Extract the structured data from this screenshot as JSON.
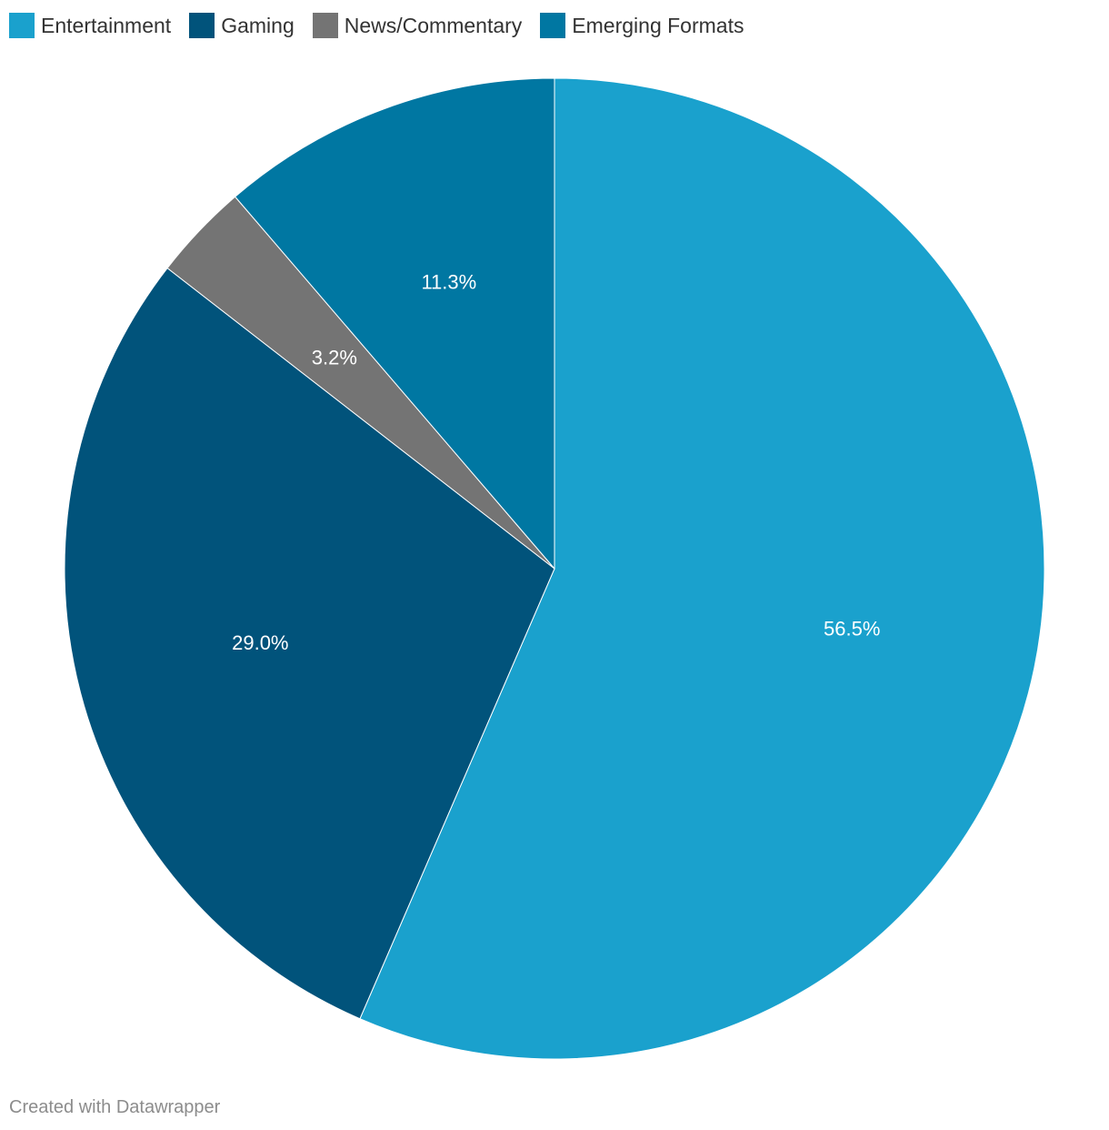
{
  "chart_data": {
    "type": "pie",
    "categories": [
      "Entertainment",
      "Gaming",
      "News/Commentary",
      "Emerging Formats"
    ],
    "values": [
      56.5,
      29.0,
      3.2,
      11.3
    ],
    "data_labels": [
      "56.5%",
      "29.0%",
      "3.2%",
      "11.3%"
    ],
    "colors": [
      "#1aa1cd",
      "#01537b",
      "#747474",
      "#0077a2"
    ],
    "legend_position": "top-left",
    "start_angle": "12 o'clock, clockwise"
  },
  "legend": {
    "items": [
      {
        "label": "Entertainment",
        "color": "#1aa1cd"
      },
      {
        "label": "Gaming",
        "color": "#01537b"
      },
      {
        "label": "News/Commentary",
        "color": "#747474"
      },
      {
        "label": "Emerging Formats",
        "color": "#0077a2"
      }
    ]
  },
  "footer": {
    "credit": "Created with Datawrapper"
  }
}
